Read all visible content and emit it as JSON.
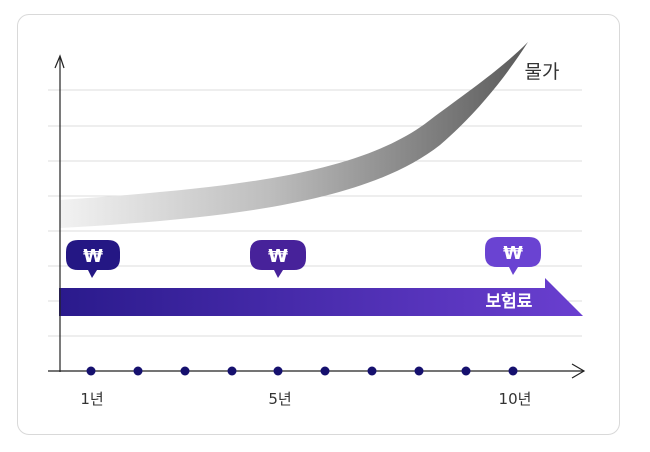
{
  "diagram": {
    "curve_label": "물가",
    "bar_label": "보험료",
    "currency_symbol": "₩",
    "x_ticks": [
      "1년",
      "5년",
      "10년"
    ],
    "colors": {
      "bar_start": "#2a1a8c",
      "bar_end": "#6a3fd0",
      "badge_1": "#241784",
      "badge_2": "#47229a",
      "badge_3": "#6a43d2",
      "dot": "#15106e",
      "grid": "#d8d8d8",
      "axis": "#222222"
    }
  }
}
